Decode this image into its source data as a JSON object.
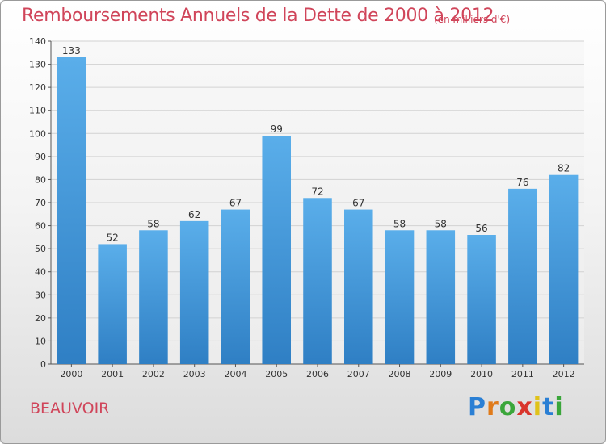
{
  "chart_data": {
    "type": "bar",
    "title": "Remboursements Annuels de la Dette de 2000 à 2012",
    "subtitle": "(en milliers d'€)",
    "categories": [
      "2000",
      "2001",
      "2002",
      "2003",
      "2004",
      "2005",
      "2006",
      "2007",
      "2008",
      "2009",
      "2010",
      "2011",
      "2012"
    ],
    "values": [
      133,
      52,
      58,
      62,
      67,
      99,
      72,
      67,
      58,
      58,
      56,
      76,
      82
    ],
    "ylim": [
      0,
      140
    ],
    "yticks": [
      0,
      10,
      20,
      30,
      40,
      50,
      60,
      70,
      80,
      90,
      100,
      110,
      120,
      130,
      140
    ],
    "grid": true,
    "bar_color": "#4a9be0",
    "bar_color_dark": "#2f7fc4"
  },
  "commune": "BEAUVOIR",
  "logo": {
    "letters": [
      "P",
      "r",
      "o",
      "x",
      "i",
      "t",
      "i"
    ],
    "colors": [
      "#2a7fd4",
      "#e07b1a",
      "#3aa63a",
      "#d9342b",
      "#e0c21a",
      "#2a7fd4",
      "#3aa63a"
    ]
  }
}
